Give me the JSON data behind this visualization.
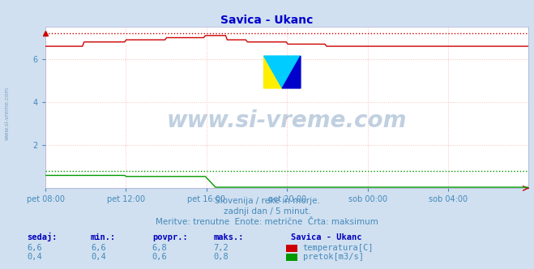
{
  "title": "Savica - Ukanc",
  "title_color": "#0000cc",
  "bg_color": "#d0e0f0",
  "plot_bg_color": "#ffffff",
  "grid_color": "#ffbbbb",
  "x_labels": [
    "pet 08:00",
    "pet 12:00",
    "pet 16:00",
    "pet 20:00",
    "sob 00:00",
    "sob 04:00"
  ],
  "x_ticks_norm": [
    0.0,
    0.1667,
    0.3333,
    0.5,
    0.6667,
    0.8333
  ],
  "ylim_max": 7.5,
  "yticks": [
    2,
    4,
    6
  ],
  "temp_color": "#cc0000",
  "flow_color": "#009900",
  "height_color": "#0000bb",
  "temp_max": 7.2,
  "flow_max": 0.8,
  "watermark": "www.si-vreme.com",
  "watermark_color": "#336699",
  "watermark_alpha": 0.3,
  "sub_text1": "Slovenija / reke in morje.",
  "sub_text2": "zadnji dan / 5 minut.",
  "sub_text3": "Meritve: trenutne  Enote: metrične  Črta: maksimum",
  "sub_color": "#4488bb",
  "table_color": "#0000bb",
  "station_label": "Savica - Ukanc",
  "table_header": [
    "sedaj:",
    "min.:",
    "povpr.:",
    "maks.:"
  ],
  "row1_values": [
    "6,6",
    "6,6",
    "6,8",
    "7,2"
  ],
  "row2_values": [
    "0,4",
    "0,4",
    "0,6",
    "0,8"
  ],
  "temp_label": "temperatura[C]",
  "flow_label": "pretok[m3/s]",
  "n_points": 288
}
